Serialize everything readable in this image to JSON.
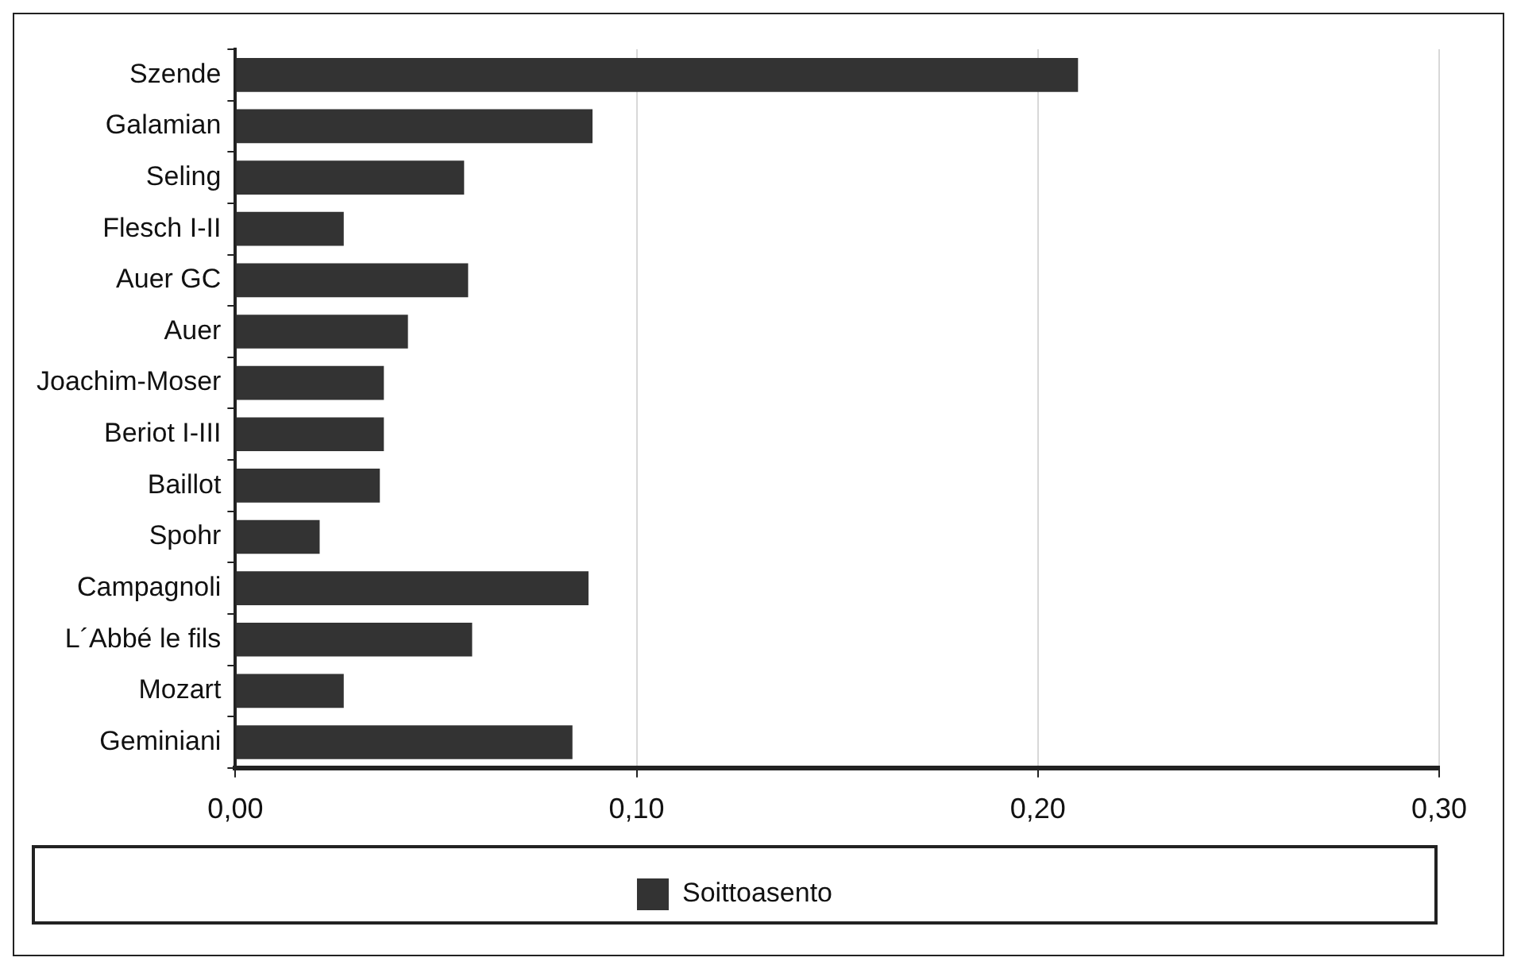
{
  "chart_data": {
    "type": "bar",
    "orientation": "horizontal",
    "categories": [
      "Szende",
      "Galamian",
      "Seling",
      "Flesch I-II",
      "Auer GC",
      "Auer",
      "Joachim-Moser",
      "Beriot I-III",
      "Baillot",
      "Spohr",
      "Campagnoli",
      "L´Abbé le fils",
      "Mozart",
      "Geminiani"
    ],
    "series": [
      {
        "name": "Soittoasento",
        "color": "#333333",
        "values": [
          0.21,
          0.089,
          0.057,
          0.027,
          0.058,
          0.043,
          0.037,
          0.037,
          0.036,
          0.021,
          0.088,
          0.059,
          0.027,
          0.084
        ]
      }
    ],
    "xlim": [
      0,
      0.3
    ],
    "xticks": [
      {
        "value": 0,
        "label": "0,00"
      },
      {
        "value": 0.1,
        "label": "0,10"
      },
      {
        "value": 0.2,
        "label": "0,20"
      },
      {
        "value": 0.3,
        "label": "0,30"
      }
    ],
    "grid": "x",
    "legend": "bottom"
  }
}
